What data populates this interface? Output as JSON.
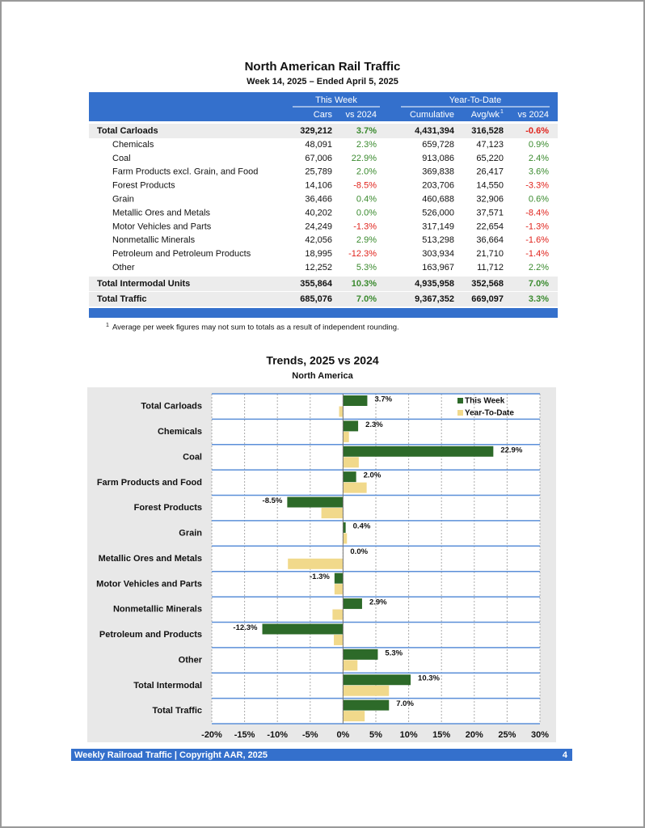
{
  "header": {
    "title": "North American Rail Traffic",
    "subtitle": "Week 14, 2025 – Ended April 5, 2025"
  },
  "table": {
    "groups": [
      "This Week",
      "Year-To-Date"
    ],
    "columns": [
      "Cars",
      "vs 2024",
      "Cumulative",
      "Avg/wk",
      "vs 2024"
    ],
    "avg_note_mark": "1",
    "carloads": {
      "label": "Total Carloads",
      "values": [
        "329,212",
        "3.7%",
        "4,431,394",
        "316,528",
        "-0.6%"
      ],
      "items": [
        {
          "label": "Chemicals",
          "values": [
            "48,091",
            "2.3%",
            "659,728",
            "47,123",
            "0.9%"
          ]
        },
        {
          "label": "Coal",
          "values": [
            "67,006",
            "22.9%",
            "913,086",
            "65,220",
            "2.4%"
          ]
        },
        {
          "label": "Farm Products excl. Grain, and Food",
          "values": [
            "25,789",
            "2.0%",
            "369,838",
            "26,417",
            "3.6%"
          ]
        },
        {
          "label": "Forest Products",
          "values": [
            "14,106",
            "-8.5%",
            "203,706",
            "14,550",
            "-3.3%"
          ]
        },
        {
          "label": "Grain",
          "values": [
            "36,466",
            "0.4%",
            "460,688",
            "32,906",
            "0.6%"
          ]
        },
        {
          "label": "Metallic Ores and Metals",
          "values": [
            "40,202",
            "0.0%",
            "526,000",
            "37,571",
            "-8.4%"
          ]
        },
        {
          "label": "Motor Vehicles and Parts",
          "values": [
            "24,249",
            "-1.3%",
            "317,149",
            "22,654",
            "-1.3%"
          ]
        },
        {
          "label": "Nonmetallic Minerals",
          "values": [
            "42,056",
            "2.9%",
            "513,298",
            "36,664",
            "-1.6%"
          ]
        },
        {
          "label": "Petroleum and Petroleum Products",
          "values": [
            "18,995",
            "-12.3%",
            "303,934",
            "21,710",
            "-1.4%"
          ]
        },
        {
          "label": "Other",
          "values": [
            "12,252",
            "5.3%",
            "163,967",
            "11,712",
            "2.2%"
          ]
        }
      ]
    },
    "intermodal": {
      "label": "Total Intermodal Units",
      "values": [
        "355,864",
        "10.3%",
        "4,935,958",
        "352,568",
        "7.0%"
      ]
    },
    "traffic": {
      "label": "Total Traffic",
      "values": [
        "685,076",
        "7.0%",
        "9,367,352",
        "669,097",
        "3.3%"
      ]
    }
  },
  "footnote": {
    "mark": "1",
    "text": "Average per week figures may not sum to totals as a result of independent rounding."
  },
  "chart_data": {
    "type": "hbar",
    "title": "Trends, 2025 vs 2024",
    "subtitle": "North America",
    "categories": [
      "Total Carloads",
      "Chemicals",
      "Coal",
      "Farm Products and Food",
      "Forest Products",
      "Grain",
      "Metallic Ores and Metals",
      "Motor Vehicles and Parts",
      "Nonmetallic Minerals",
      "Petroleum and Products",
      "Other",
      "Total Intermodal",
      "Total Traffic"
    ],
    "series": [
      {
        "name": "This Week",
        "color": "#2d6a29",
        "values": [
          3.7,
          2.3,
          22.9,
          2.0,
          -8.5,
          0.4,
          0.0,
          -1.3,
          2.9,
          -12.3,
          5.3,
          10.3,
          7.0
        ],
        "value_labels": [
          "3.7%",
          "2.3%",
          "22.9%",
          "2.0%",
          "-8.5%",
          "0.4%",
          "0.0%",
          "-1.3%",
          "2.9%",
          "-12.3%",
          "5.3%",
          "10.3%",
          "7.0%"
        ]
      },
      {
        "name": "Year-To-Date",
        "color": "#f1d98b",
        "values": [
          -0.6,
          0.9,
          2.4,
          3.6,
          -3.3,
          0.6,
          -8.4,
          -1.3,
          -1.6,
          -1.4,
          2.2,
          7.0,
          3.3
        ]
      }
    ],
    "xlim": [
      -20,
      30
    ],
    "xticks": [
      {
        "value": -20,
        "label": "-20%"
      },
      {
        "value": -15,
        "label": "-15%"
      },
      {
        "value": -10,
        "label": "-10%"
      },
      {
        "value": -5,
        "label": "-5%"
      },
      {
        "value": 0,
        "label": "0%"
      },
      {
        "value": 5,
        "label": "5%"
      },
      {
        "value": 10,
        "label": "10%"
      },
      {
        "value": 15,
        "label": "15%"
      },
      {
        "value": 20,
        "label": "20%"
      },
      {
        "value": 25,
        "label": "25%"
      },
      {
        "value": 30,
        "label": "30%"
      }
    ],
    "grid": true,
    "legend": "top-right"
  },
  "footer": {
    "text": "Weekly Railroad Traffic | Copyright AAR, 2025",
    "page": "4"
  }
}
